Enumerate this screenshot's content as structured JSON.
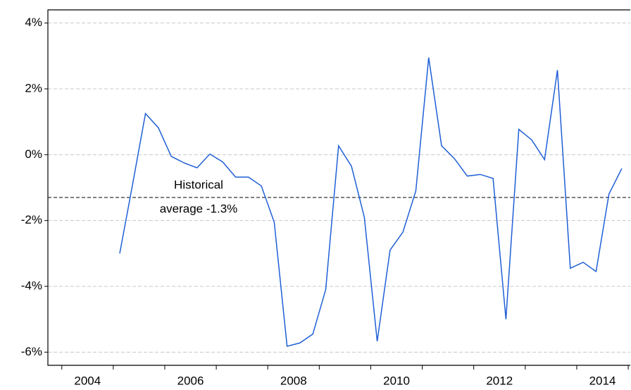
{
  "chart_data": {
    "type": "line",
    "x": [
      2005.125,
      2005.375,
      2005.625,
      2005.875,
      2006.125,
      2006.375,
      2006.625,
      2006.875,
      2007.125,
      2007.375,
      2007.625,
      2007.875,
      2008.125,
      2008.375,
      2008.625,
      2008.875,
      2009.125,
      2009.375,
      2009.625,
      2009.875,
      2010.125,
      2010.375,
      2010.625,
      2010.875,
      2011.125,
      2011.375,
      2011.625,
      2011.875,
      2012.125,
      2012.375,
      2012.625,
      2012.875,
      2013.125,
      2013.375,
      2013.625,
      2013.875,
      2014.125,
      2014.375,
      2014.625,
      2014.875
    ],
    "series": [
      {
        "color": "#1f5fd6",
        "values": [
          -3.0,
          -0.9,
          1.25,
          0.82,
          -0.05,
          -0.25,
          -0.4,
          0.02,
          -0.22,
          -0.68,
          -0.68,
          -0.95,
          -2.05,
          -5.82,
          -5.72,
          -5.45,
          -4.1,
          0.27,
          -0.35,
          -1.9,
          -5.67,
          -2.9,
          -2.35,
          -1.1,
          2.95,
          0.27,
          -0.12,
          -0.65,
          -0.6,
          -0.72,
          -5.0,
          0.77,
          0.45,
          -0.15,
          2.57,
          -3.45,
          -3.27,
          -3.55,
          -1.2,
          -0.42
        ]
      }
    ],
    "xlim": [
      2003.73,
      2015.04
    ],
    "xticks": [
      {
        "value": 2004.5,
        "label": "2004"
      },
      {
        "value": 2006.5,
        "label": "2006"
      },
      {
        "value": 2008.5,
        "label": "2008"
      },
      {
        "value": 2010.5,
        "label": "2010"
      },
      {
        "value": 2012.5,
        "label": "2012"
      },
      {
        "value": 2014.5,
        "label": "2014"
      }
    ],
    "ylim": [
      -6.4,
      4.4
    ],
    "yticks": [
      {
        "value": -6,
        "label": "-6%"
      },
      {
        "value": -4,
        "label": "-4%"
      },
      {
        "value": -2,
        "label": "-2%"
      },
      {
        "value": 0,
        "label": "0%"
      },
      {
        "value": 2,
        "label": "2%"
      },
      {
        "value": 4,
        "label": "4%"
      }
    ],
    "grid": true,
    "reference": {
      "value": -1.3,
      "label": [
        "Historical",
        "average -1.3%"
      ]
    }
  }
}
